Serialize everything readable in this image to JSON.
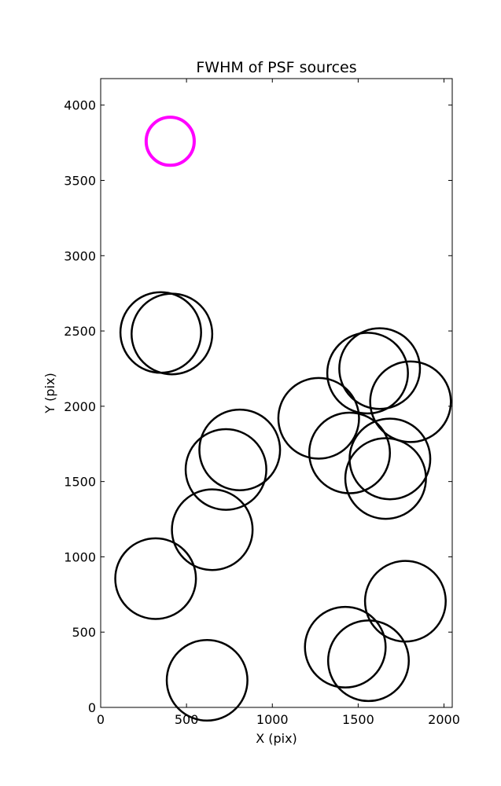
{
  "chart_data": {
    "type": "scatter",
    "title": "FWHM of PSF sources",
    "xlabel": "X (pix)",
    "ylabel": "Y (pix)",
    "xlim": [
      0,
      2048
    ],
    "ylim": [
      0,
      4176
    ],
    "xticks": [
      0,
      500,
      1000,
      1500,
      2000
    ],
    "yticks": [
      0,
      500,
      1000,
      1500,
      2000,
      2500,
      3000,
      3500,
      4000
    ],
    "grid": false,
    "highlight_color": "#ff00ff",
    "default_color": "#000000",
    "series": [
      {
        "name": "",
        "points": [
          {
            "x": 405,
            "y": 3760,
            "r": 140,
            "highlight": true
          },
          {
            "x": 350,
            "y": 2490,
            "r": 235
          },
          {
            "x": 415,
            "y": 2480,
            "r": 235
          },
          {
            "x": 1625,
            "y": 2250,
            "r": 235
          },
          {
            "x": 1555,
            "y": 2220,
            "r": 235
          },
          {
            "x": 1805,
            "y": 2030,
            "r": 235
          },
          {
            "x": 1270,
            "y": 1920,
            "r": 235
          },
          {
            "x": 810,
            "y": 1710,
            "r": 235
          },
          {
            "x": 1450,
            "y": 1690,
            "r": 235
          },
          {
            "x": 1685,
            "y": 1650,
            "r": 235
          },
          {
            "x": 730,
            "y": 1580,
            "r": 235
          },
          {
            "x": 1660,
            "y": 1520,
            "r": 235
          },
          {
            "x": 650,
            "y": 1180,
            "r": 235
          },
          {
            "x": 320,
            "y": 855,
            "r": 235
          },
          {
            "x": 1775,
            "y": 705,
            "r": 235
          },
          {
            "x": 1425,
            "y": 400,
            "r": 235
          },
          {
            "x": 1560,
            "y": 310,
            "r": 235
          },
          {
            "x": 620,
            "y": 180,
            "r": 235
          }
        ]
      }
    ]
  }
}
